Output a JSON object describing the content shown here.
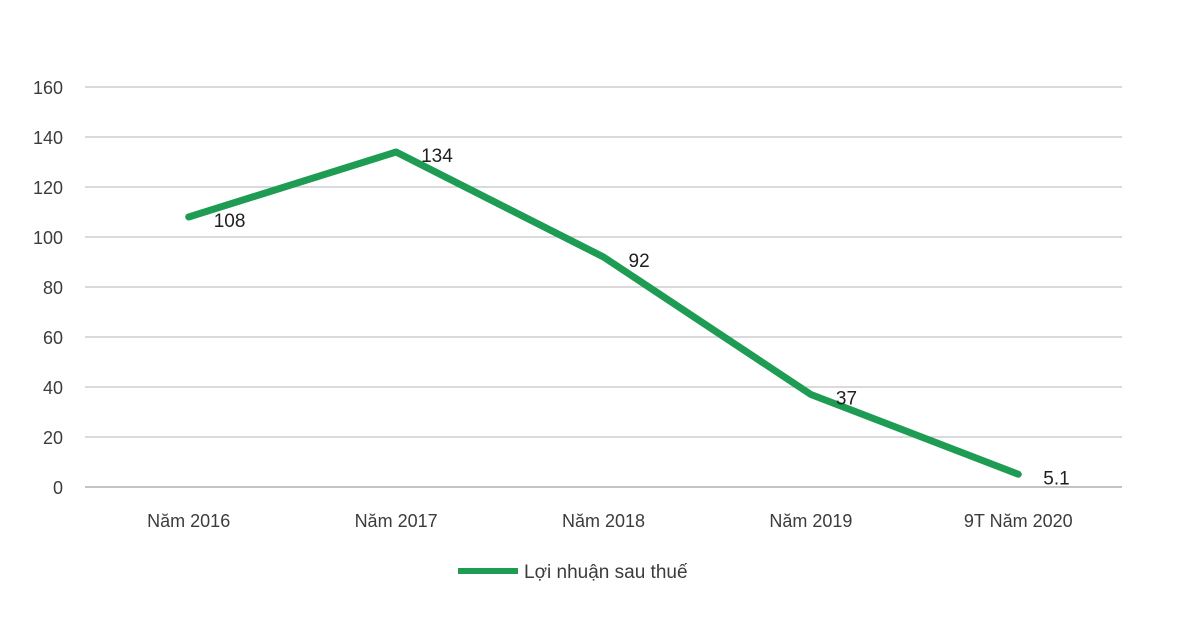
{
  "chart_data": {
    "type": "line",
    "categories": [
      "Năm 2016",
      "Năm 2017",
      "Năm 2018",
      "Năm 2019",
      "9T Năm 2020"
    ],
    "series": [
      {
        "name": "Lợi nhuận sau thuế",
        "values": [
          108,
          134,
          92,
          37,
          5.1
        ],
        "color": "#1e9c53"
      }
    ],
    "data_labels": [
      "108",
      "134",
      "92",
      "37",
      "5.1"
    ],
    "title": "",
    "xlabel": "",
    "ylabel": "",
    "ylim": [
      0,
      160
    ],
    "ytick_step": 20,
    "ytick_labels": [
      "0",
      "20",
      "40",
      "60",
      "80",
      "100",
      "120",
      "140",
      "160"
    ],
    "grid": true,
    "legend_position": "bottom"
  },
  "colors": {
    "line": "#1e9c53",
    "gridline": "#c4c4c4",
    "zero_line": "#a0a0a0",
    "axis_text": "#3c3c3c",
    "data_label_text": "#1f1f1f",
    "background": "#ffffff"
  }
}
